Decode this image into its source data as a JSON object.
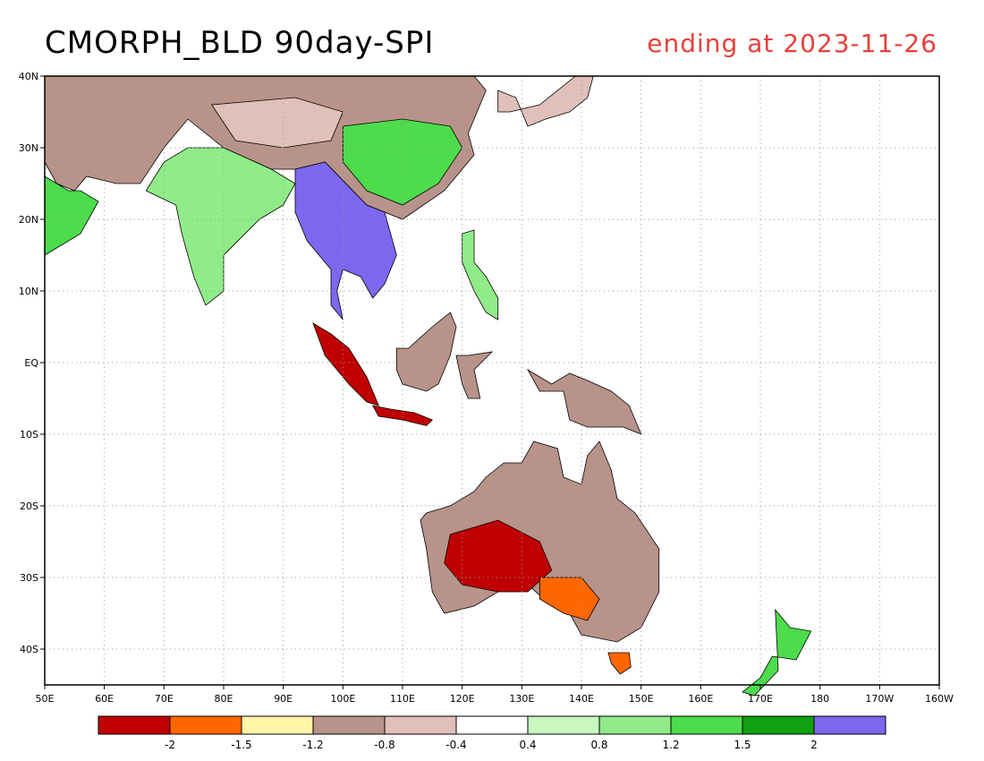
{
  "title": "CMORPH_BLD 90day-SPI",
  "subtitle": "ending at 2023-11-26",
  "colors": {
    "title": "#000000",
    "subtitle": "#e8403c",
    "coast": "#000000",
    "grid": "#9a9a9a",
    "ocean": "#ffffff"
  },
  "map": {
    "projection": "lat-lon",
    "lon_range": [
      50,
      200
    ],
    "lat_range": [
      -45,
      40
    ],
    "grid": "dotted",
    "lon_ticks": [
      "50E",
      "60E",
      "70E",
      "80E",
      "90E",
      "100E",
      "110E",
      "120E",
      "130E",
      "140E",
      "150E",
      "160E",
      "170E",
      "180",
      "170W",
      "160W"
    ],
    "lat_ticks": [
      "40N",
      "30N",
      "20N",
      "10N",
      "EQ",
      "10S",
      "20S",
      "30S",
      "40S"
    ]
  },
  "colorbar": {
    "bins": [
      {
        "color": "#c00000"
      },
      {
        "color": "#ff6600"
      },
      {
        "color": "#fff6a8"
      },
      {
        "color": "#b8938a"
      },
      {
        "color": "#e0c0b8"
      },
      {
        "color": "#ffffff"
      },
      {
        "color": "#c8f8c0"
      },
      {
        "color": "#90ec88"
      },
      {
        "color": "#4cdc4c"
      },
      {
        "color": "#10a010"
      },
      {
        "color": "#7b68ee"
      }
    ],
    "labels": [
      "-2",
      "-1.5",
      "-1.2",
      "-0.8",
      "-0.4",
      "0.4",
      "0.8",
      "1.2",
      "1.5",
      "2"
    ]
  },
  "regions": [
    {
      "name": "east-asia-china",
      "color": "#b8938a"
    },
    {
      "name": "china-wet-core",
      "color": "#4cdc4c"
    },
    {
      "name": "tibet-dry",
      "color": "#e0c0b8"
    },
    {
      "name": "india",
      "color": "#90ec88"
    },
    {
      "name": "indochina",
      "color": "#7b68ee"
    },
    {
      "name": "sumatra",
      "color": "#c00000"
    },
    {
      "name": "borneo",
      "color": "#b8938a"
    },
    {
      "name": "java",
      "color": "#c00000"
    },
    {
      "name": "sulawesi",
      "color": "#b8938a"
    },
    {
      "name": "new-guinea",
      "color": "#b8938a"
    },
    {
      "name": "philippines",
      "color": "#90ec88"
    },
    {
      "name": "japan-korea",
      "color": "#e0c0b8"
    },
    {
      "name": "australia",
      "color": "#b8938a"
    },
    {
      "name": "australia-dry-core",
      "color": "#c00000"
    },
    {
      "name": "australia-southeast-dry",
      "color": "#ff6600"
    },
    {
      "name": "tasmania",
      "color": "#ff6600"
    },
    {
      "name": "new-zealand",
      "color": "#4cdc4c"
    },
    {
      "name": "arabia-edge",
      "color": "#4cdc4c"
    }
  ]
}
